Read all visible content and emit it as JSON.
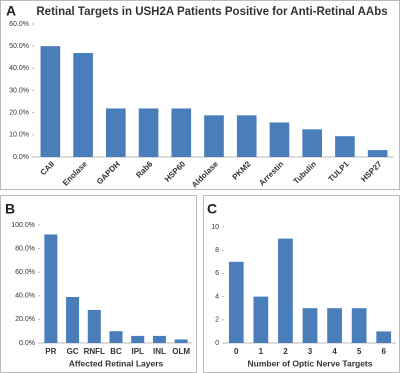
{
  "chart_data": [
    {
      "type": "bar",
      "panel": "A",
      "title": "Retinal Targets in USH2A Patients Positive for Anti-Retinal AAbs",
      "categories": [
        "CAII",
        "Enolase",
        "GAPDH",
        "Rab6",
        "HSP60",
        "Aldolase",
        "PKM2",
        "Arrestin",
        "Tubulin",
        "TULP1",
        "HSP27"
      ],
      "values": [
        50,
        46.9,
        21.9,
        21.9,
        21.9,
        18.8,
        18.8,
        15.6,
        12.5,
        9.4,
        3.1
      ],
      "color": "#4a7ebb",
      "ylim": [
        0,
        60
      ],
      "yticks": [
        {
          "value": 0,
          "label": "0.0%"
        },
        {
          "value": 10,
          "label": "10.0%"
        },
        {
          "value": 20,
          "label": "20.0%"
        },
        {
          "value": 30,
          "label": "30.0%"
        },
        {
          "value": 40,
          "label": "40.0%"
        },
        {
          "value": 50,
          "label": "50.0%"
        },
        {
          "value": 60,
          "label": "60.0%"
        }
      ]
    },
    {
      "type": "bar",
      "panel": "B",
      "x_label": "Affected Retinal Layers",
      "categories": [
        "PR",
        "GC",
        "RNFL",
        "BC",
        "IPL",
        "INL",
        "OLM"
      ],
      "values": [
        92,
        39,
        28,
        10,
        6,
        6,
        3
      ],
      "color": "#4a7ebb",
      "ylim": [
        0,
        100
      ],
      "yticks": [
        {
          "value": 0,
          "label": "0.0%"
        },
        {
          "value": 20,
          "label": "20.0%"
        },
        {
          "value": 40,
          "label": "40.0%"
        },
        {
          "value": 60,
          "label": "60.0%"
        },
        {
          "value": 80,
          "label": "80.0%"
        },
        {
          "value": 100,
          "label": "100.0%"
        }
      ]
    },
    {
      "type": "bar",
      "panel": "C",
      "x_label": "Number of Optic Nerve Targets",
      "categories": [
        "0",
        "1",
        "2",
        "3",
        "4",
        "5",
        "6"
      ],
      "values": [
        7,
        4,
        9,
        3,
        3,
        3,
        1
      ],
      "color": "#4a7ebb",
      "ylim": [
        0,
        10
      ],
      "yticks": [
        0,
        2,
        4,
        6,
        8,
        10
      ]
    }
  ]
}
